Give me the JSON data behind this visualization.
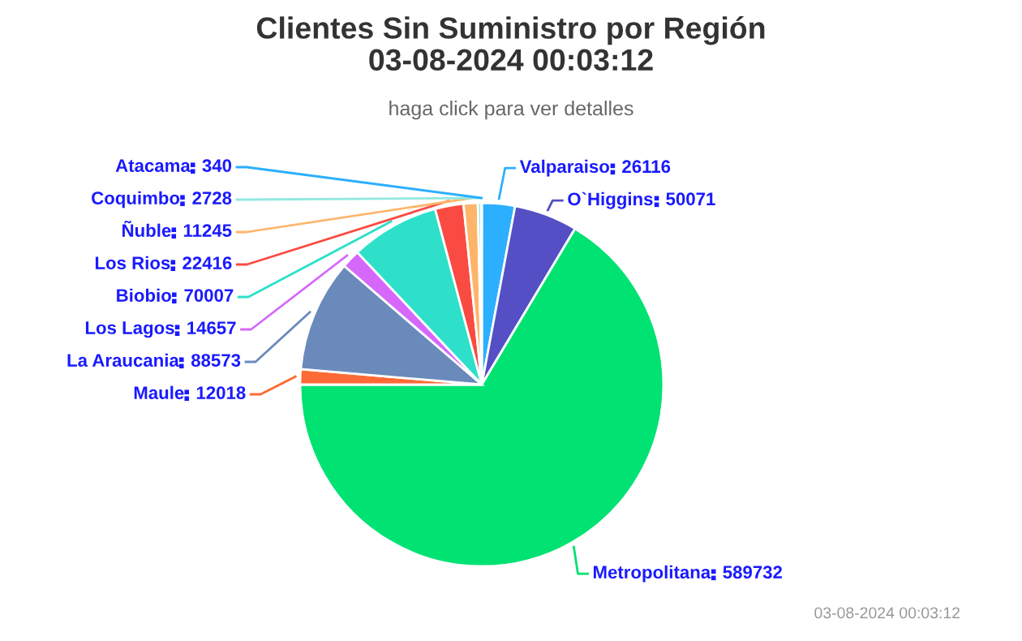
{
  "chart_data": {
    "type": "pie",
    "title": "Clientes Sin Suministro por Región\n03-08-2024 00:03:12",
    "subtitle": "haga click para ver detalles",
    "categories": [
      "Valparaiso",
      "O`Higgins",
      "Metropolitana",
      "Maule",
      "La Araucania",
      "Los Lagos",
      "Biobio",
      "Los Rios",
      "Ñuble",
      "Coquimbo",
      "Atacama"
    ],
    "values": [
      26116,
      50071,
      589732,
      12018,
      88573,
      14657,
      70007,
      22416,
      11245,
      2728,
      340
    ],
    "colors": [
      "#2caffe",
      "#544fc5",
      "#00e272",
      "#fe6a35",
      "#6b8abc",
      "#d568fb",
      "#2ee0ca",
      "#fa4b42",
      "#feb56a",
      "#91e8e1",
      "#2caffe"
    ],
    "data_labels": true,
    "annotations": [
      "03-08-2024 00:03:12"
    ]
  }
}
